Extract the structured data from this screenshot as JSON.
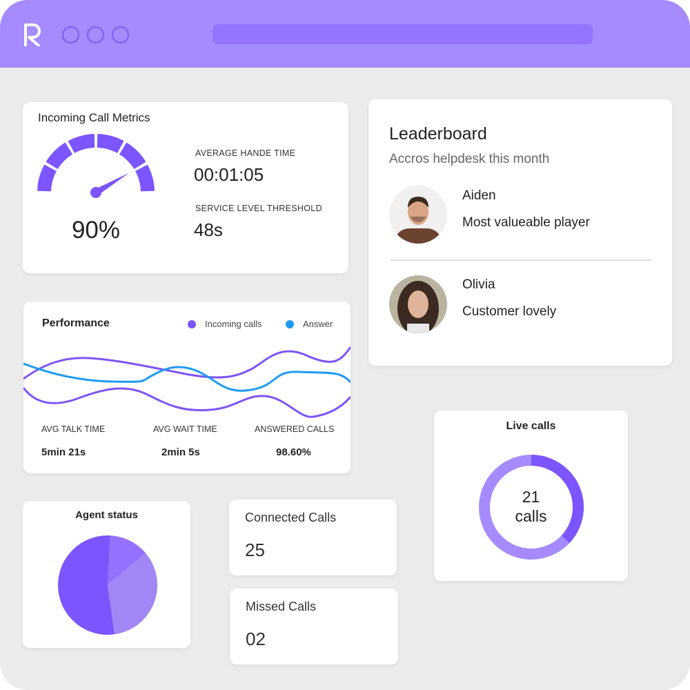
{
  "app": {
    "logo": "R",
    "window_controls": 3
  },
  "metrics": {
    "title": "Incoming Call Metrics",
    "gauge_percent": "90%",
    "gauge_value": 90,
    "avg_label": "AVERAGE HANDE TIME",
    "avg_value": "00:01:05",
    "slt_label": "SERVICE LEVEL THRESHOLD",
    "slt_value": "48s"
  },
  "leaderboard": {
    "title": "Leaderboard",
    "subtitle": "Accros helpdesk this month",
    "entries": [
      {
        "name": "Aiden",
        "award": "Most valueable player"
      },
      {
        "name": "Olivia",
        "award": "Customer lovely"
      }
    ]
  },
  "performance": {
    "title": "Performance",
    "legend": [
      {
        "name": "Incoming calls",
        "color": "#7c55f7"
      },
      {
        "name": "Answer",
        "color": "#1e9bf0"
      }
    ],
    "stats": [
      {
        "label": "AVG TALK TIME",
        "value": "5min 21s"
      },
      {
        "label": "AVG WAIT TIME",
        "value": "2min 5s"
      },
      {
        "label": "ANSWERED CALLS",
        "value": "98.60%"
      }
    ]
  },
  "live": {
    "title": "Live calls",
    "count": "21",
    "unit": "calls",
    "fraction": 0.37
  },
  "agent": {
    "title": "Agent status",
    "slices": [
      53,
      13,
      34
    ],
    "colors": [
      "#7c55ff",
      "#9471ff",
      "#a286f5"
    ]
  },
  "connected": {
    "label": "Connected Calls",
    "value": "25"
  },
  "missed": {
    "label": "Missed Calls",
    "value": "02"
  }
}
